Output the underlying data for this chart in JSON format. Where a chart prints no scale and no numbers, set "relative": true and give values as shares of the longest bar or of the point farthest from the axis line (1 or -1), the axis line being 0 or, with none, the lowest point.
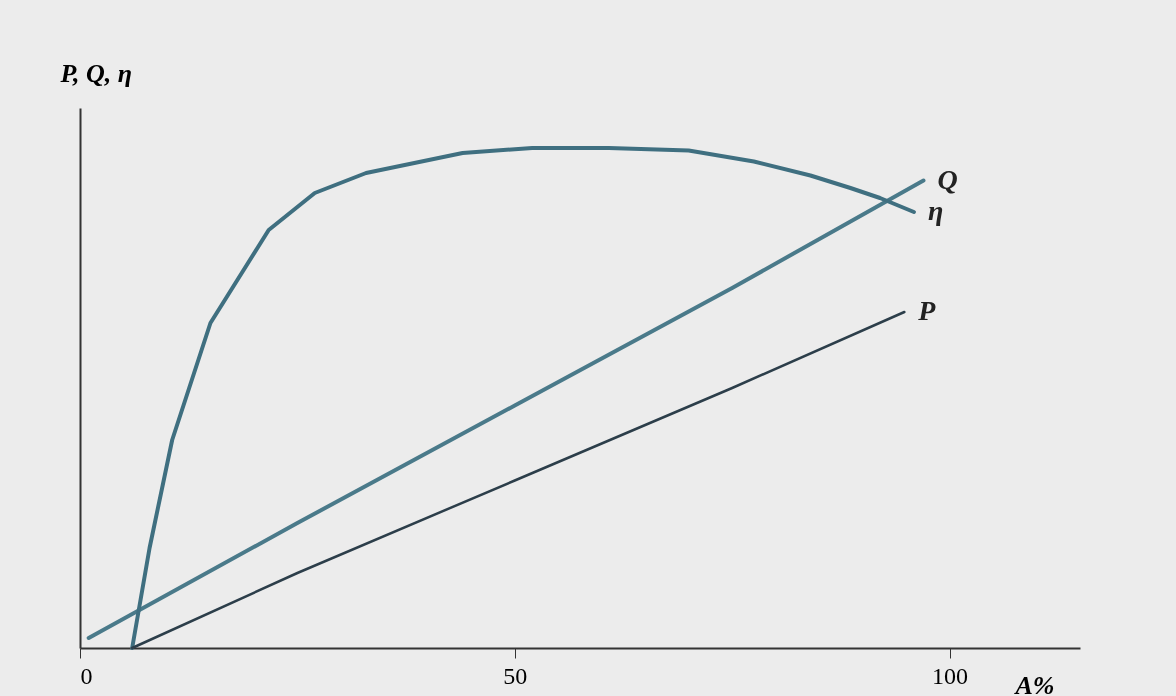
{
  "chart_data": {
    "type": "line",
    "relative": true,
    "xlabel": "A%",
    "ylabel": "P, Q, η",
    "xlim": [
      0,
      115
    ],
    "xticks": [
      0,
      50,
      100
    ],
    "legend": false,
    "marker": "none",
    "line_style": "solid",
    "series": [
      {
        "name": "Q",
        "color": "#4a7a8a",
        "x": [
          1,
          25,
          50,
          75,
          97
        ],
        "values": [
          0.02,
          0.25,
          0.485,
          0.72,
          0.935
        ]
      },
      {
        "name": "η",
        "color": "#3f6f80",
        "x": [
          6,
          8,
          10.6,
          15,
          21.7,
          27,
          32.9,
          44,
          52,
          60.8,
          70,
          77.5,
          84,
          88.6,
          92,
          95.9
        ],
        "values": [
          0,
          0.2,
          0.416,
          0.65,
          0.836,
          0.91,
          0.95,
          0.99,
          1.0,
          1.0,
          0.995,
          0.973,
          0.945,
          0.92,
          0.9,
          0.872
        ]
      },
      {
        "name": "P",
        "color": "#2c3e4a",
        "x": [
          6,
          25,
          50,
          75,
          94.8
        ],
        "values": [
          0,
          0.15,
          0.335,
          0.52,
          0.672
        ]
      }
    ]
  }
}
